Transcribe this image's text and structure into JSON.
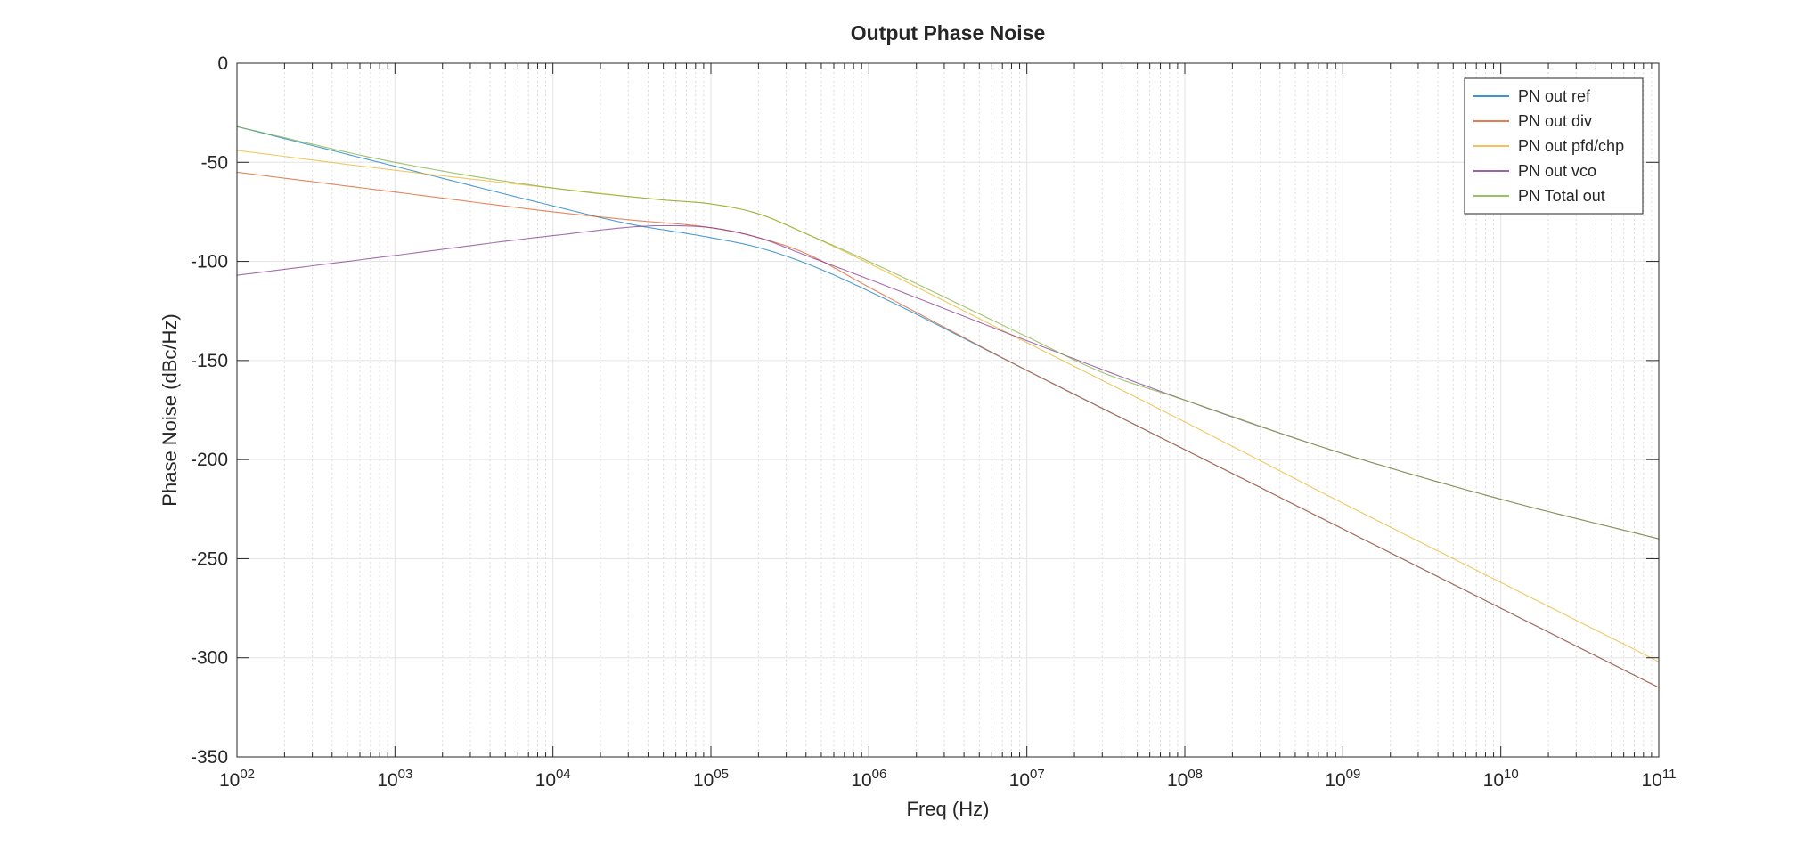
{
  "chart_data": {
    "type": "line",
    "title": "Output Phase Noise",
    "xlabel": "Freq (Hz)",
    "ylabel": "Phase Noise (dBc/Hz)",
    "xscale": "log",
    "xlim": [
      100,
      100000000000
    ],
    "ylim": [
      -350,
      0
    ],
    "grid": true,
    "legend_position": "top-right",
    "x_ticks": [
      {
        "value": 100,
        "base": "10",
        "exp": "02"
      },
      {
        "value": 1000,
        "base": "10",
        "exp": "03"
      },
      {
        "value": 10000,
        "base": "10",
        "exp": "04"
      },
      {
        "value": 100000,
        "base": "10",
        "exp": "05"
      },
      {
        "value": 1000000,
        "base": "10",
        "exp": "06"
      },
      {
        "value": 10000000,
        "base": "10",
        "exp": "07"
      },
      {
        "value": 100000000,
        "base": "10",
        "exp": "08"
      },
      {
        "value": 1000000000,
        "base": "10",
        "exp": "09"
      },
      {
        "value": 10000000000,
        "base": "10",
        "exp": "10"
      },
      {
        "value": 100000000000,
        "base": "10",
        "exp": "11"
      }
    ],
    "y_ticks": [
      {
        "value": 0,
        "label": "0"
      },
      {
        "value": -50,
        "label": "-50"
      },
      {
        "value": -100,
        "label": "-100"
      },
      {
        "value": -150,
        "label": "-150"
      },
      {
        "value": -200,
        "label": "-200"
      },
      {
        "value": -250,
        "label": "-250"
      },
      {
        "value": -300,
        "label": "-300"
      },
      {
        "value": -350,
        "label": "-350"
      }
    ],
    "series": [
      {
        "name": "PN out ref",
        "color": "#0072BD",
        "x": [
          100,
          1000,
          10000,
          30000,
          100000,
          200000,
          400000,
          1000000,
          10000000,
          100000000,
          1000000000,
          10000000000,
          100000000000
        ],
        "y": [
          -32,
          -52,
          -72,
          -81,
          -88,
          -93,
          -101,
          -115,
          -155,
          -195,
          -235,
          -275,
          -315
        ]
      },
      {
        "name": "PN out div",
        "color": "#D95319",
        "x": [
          100,
          1000,
          10000,
          30000,
          100000,
          200000,
          400000,
          1000000,
          10000000,
          100000000,
          1000000000,
          10000000000,
          100000000000
        ],
        "y": [
          -55,
          -65,
          -75,
          -79,
          -83,
          -88,
          -96,
          -113,
          -155,
          -195,
          -235,
          -275,
          -315
        ]
      },
      {
        "name": "PN out pfd/chp",
        "color": "#EDB120",
        "x": [
          100,
          1000,
          10000,
          50000,
          100000,
          200000,
          400000,
          1000000,
          10000000,
          100000000,
          1000000000,
          10000000000,
          100000000000
        ],
        "y": [
          -44,
          -54,
          -63,
          -69,
          -71,
          -76,
          -86,
          -101,
          -141,
          -181,
          -222,
          -262,
          -302
        ]
      },
      {
        "name": "PN out vco",
        "color": "#7E2F8E",
        "x": [
          100,
          1000,
          10000,
          50000,
          100000,
          200000,
          400000,
          1000000,
          10000000,
          100000000,
          1000000000,
          10000000000,
          100000000000
        ],
        "y": [
          -107,
          -97,
          -87,
          -82,
          -83,
          -88,
          -97,
          -109,
          -140,
          -170,
          -197,
          -220,
          -240
        ]
      },
      {
        "name": "PN Total out",
        "color": "#77AC30",
        "x": [
          100,
          1000,
          10000,
          50000,
          100000,
          200000,
          400000,
          1000000,
          10000000,
          30000000,
          100000000,
          1000000000,
          10000000000,
          100000000000
        ],
        "y": [
          -32,
          -50,
          -63,
          -69,
          -71,
          -76,
          -86,
          -100,
          -138,
          -156,
          -170,
          -197,
          -220,
          -240
        ]
      }
    ]
  }
}
